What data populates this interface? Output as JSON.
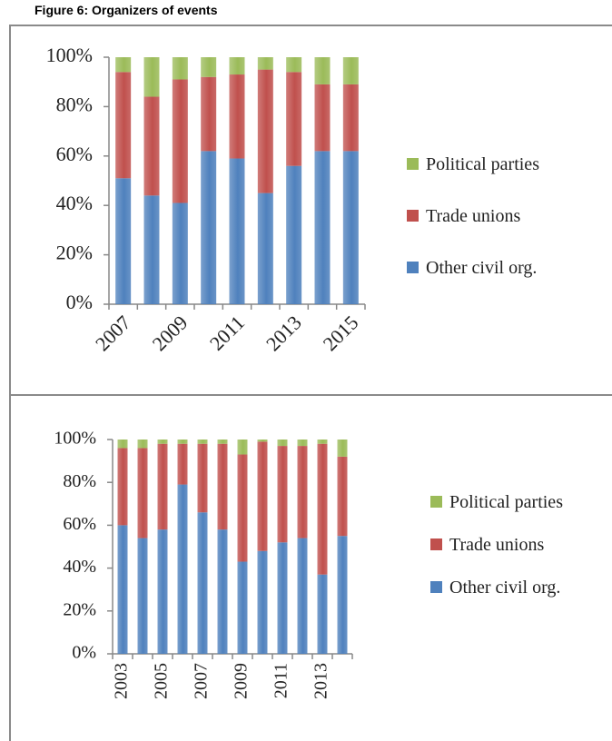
{
  "title": "Figure 6: Organizers of events",
  "chart_data": [
    {
      "type": "stacked_bar",
      "categories": [
        "2007",
        null,
        "2009",
        null,
        "2011",
        null,
        "2013",
        null,
        "2015"
      ],
      "series": [
        {
          "name": "Other civil org.",
          "color": "#4f81bd",
          "values": [
            51,
            44,
            41,
            62,
            59,
            45,
            56,
            62,
            62
          ]
        },
        {
          "name": "Trade unions",
          "color": "#c0504d",
          "values": [
            43,
            40,
            50,
            30,
            34,
            50,
            38,
            27,
            27
          ]
        },
        {
          "name": "Political parties",
          "color": "#9bbb59",
          "values": [
            6,
            16,
            9,
            8,
            7,
            5,
            6,
            11,
            11
          ]
        }
      ],
      "ylim": [
        0,
        100
      ],
      "yticks": [
        {
          "value": 0,
          "label": "0%"
        },
        {
          "value": 20,
          "label": "20%"
        },
        {
          "value": 40,
          "label": "40%"
        },
        {
          "value": 60,
          "label": "60%"
        },
        {
          "value": 80,
          "label": "80%"
        },
        {
          "value": 100,
          "label": "100%"
        }
      ],
      "legend": "right"
    },
    {
      "type": "stacked_bar",
      "categories": [
        "2003",
        null,
        "2005",
        null,
        "2007",
        null,
        "2009",
        null,
        "2011",
        null,
        "2013",
        null
      ],
      "series": [
        {
          "name": "Other civil org.",
          "color": "#4f81bd",
          "values": [
            60,
            54,
            58,
            79,
            66,
            58,
            43,
            48,
            52,
            54,
            37,
            55
          ]
        },
        {
          "name": "Trade unions",
          "color": "#c0504d",
          "values": [
            36,
            42,
            40,
            19,
            32,
            40,
            50,
            51,
            45,
            43,
            61,
            37
          ]
        },
        {
          "name": "Political parties",
          "color": "#9bbb59",
          "values": [
            4,
            4,
            2,
            2,
            2,
            2,
            7,
            1,
            3,
            3,
            2,
            8
          ]
        }
      ],
      "ylim": [
        0,
        100
      ],
      "yticks": [
        {
          "value": 0,
          "label": "0%"
        },
        {
          "value": 20,
          "label": "20%"
        },
        {
          "value": 40,
          "label": "40%"
        },
        {
          "value": 60,
          "label": "60%"
        },
        {
          "value": 80,
          "label": "80%"
        },
        {
          "value": 100,
          "label": "100%"
        }
      ],
      "legend": "right"
    }
  ]
}
